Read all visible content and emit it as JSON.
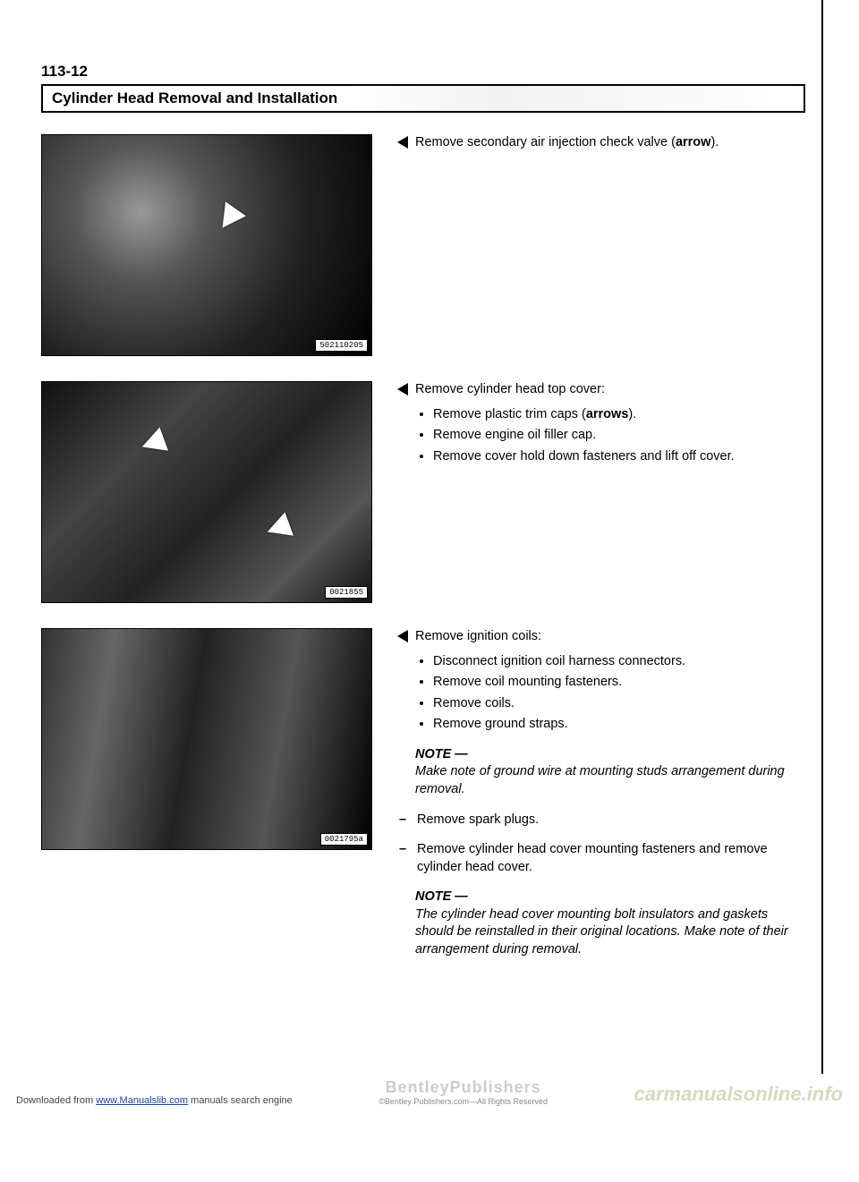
{
  "page_number": "113-12",
  "title": "Cylinder Head Removal and Installation",
  "figures": [
    {
      "tag": "502110205",
      "arrows": [
        "a1"
      ],
      "shade": "shade1"
    },
    {
      "tag": "0021855",
      "arrows": [
        "a2a",
        "a2b"
      ],
      "shade": "shade2"
    },
    {
      "tag": "0021795a",
      "arrows": [],
      "shade": "shade3"
    }
  ],
  "block1": {
    "lead": "Remove secondary air injection check valve (",
    "bold": "arrow",
    "tail": ")."
  },
  "block2": {
    "lead": "Remove cylinder head top cover:",
    "bullets_pre": [
      "Remove plastic trim caps (",
      "Remove engine oil filler cap.",
      "Remove cover hold down fasteners and lift off cover."
    ],
    "bullet0_bold": "arrows",
    "bullet0_tail": ")."
  },
  "block3": {
    "lead": "Remove ignition coils:",
    "bullets": [
      "Disconnect ignition coil harness connectors.",
      "Remove coil mounting fasteners.",
      "Remove coils.",
      "Remove ground straps."
    ],
    "note1_head": "NOTE —",
    "note1_body": "Make note of ground wire at mounting studs arrangement during removal.",
    "dash1": "Remove spark plugs.",
    "dash2": "Remove cylinder head cover mounting fasteners and remove cylinder head cover.",
    "note2_head": "NOTE —",
    "note2_body": "The cylinder head cover mounting bolt insulators and gaskets should be reinstalled in their original locations. Make note of their arrangement during removal."
  },
  "footer": {
    "left_pre": "Downloaded from ",
    "left_link": "www.Manualslib.com",
    "left_post": " manuals search engine",
    "mid": "BentleyPublishers",
    "mid_sub": "©Bentley Publishers.com—All Rights Reserved",
    "right": "carmanualsonline.info"
  }
}
